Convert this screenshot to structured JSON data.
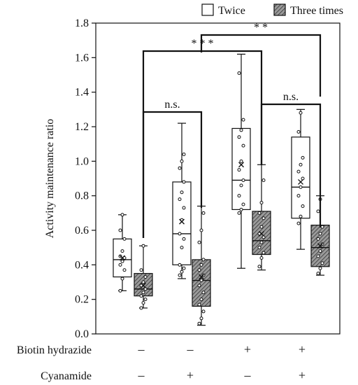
{
  "chart_data": {
    "type": "box",
    "ylabel": "Activity maintenance ratio",
    "ylim": [
      0.0,
      1.8
    ],
    "yticks": [
      0.0,
      0.2,
      0.4,
      0.6,
      0.8,
      1.0,
      1.2,
      1.4,
      1.6,
      1.8
    ],
    "legend": {
      "placement": "top-right",
      "entries": [
        {
          "name": "Twice",
          "style": "white"
        },
        {
          "name": "Three times",
          "style": "hatched"
        }
      ]
    },
    "conditions": [
      {
        "row_label": "Biotin hydrazide",
        "values": [
          "–",
          "–",
          "+",
          "+"
        ]
      },
      {
        "row_label": "Cyanamide",
        "values": [
          "–",
          "+",
          "–",
          "+"
        ]
      }
    ],
    "groups": [
      {
        "boxes": [
          {
            "series": "Twice",
            "min": 0.25,
            "q1": 0.33,
            "median": 0.43,
            "q3": 0.55,
            "max": 0.69,
            "mean": 0.44,
            "points": [
              0.25,
              0.32,
              0.37,
              0.4,
              0.42,
              0.44,
              0.45,
              0.48,
              0.55,
              0.6,
              0.69
            ]
          },
          {
            "series": "Three times",
            "min": 0.15,
            "q1": 0.22,
            "median": 0.26,
            "q3": 0.35,
            "max": 0.51,
            "mean": 0.28,
            "points": [
              0.15,
              0.18,
              0.2,
              0.22,
              0.24,
              0.26,
              0.28,
              0.3,
              0.33,
              0.37,
              0.51
            ]
          }
        ]
      },
      {
        "boxes": [
          {
            "series": "Twice",
            "min": 0.32,
            "q1": 0.4,
            "median": 0.58,
            "q3": 0.88,
            "max": 1.22,
            "mean": 0.65,
            "points": [
              0.34,
              0.36,
              0.38,
              0.4,
              0.5,
              0.55,
              0.58,
              0.66,
              0.73,
              0.78,
              0.82,
              0.88,
              0.96,
              1.0,
              1.04
            ]
          },
          {
            "series": "Three times",
            "min": 0.05,
            "q1": 0.16,
            "median": 0.31,
            "q3": 0.43,
            "max": 0.74,
            "mean": 0.33,
            "points": [
              0.06,
              0.09,
              0.13,
              0.17,
              0.2,
              0.24,
              0.28,
              0.31,
              0.34,
              0.37,
              0.4,
              0.43,
              0.53,
              0.6,
              0.7
            ]
          }
        ]
      },
      {
        "boxes": [
          {
            "series": "Twice",
            "min": 0.38,
            "q1": 0.72,
            "median": 0.89,
            "q3": 1.19,
            "max": 1.62,
            "mean": 0.98,
            "points": [
              0.7,
              0.72,
              0.75,
              0.8,
              0.86,
              0.89,
              0.95,
              1.0,
              1.09,
              1.14,
              1.18,
              1.24,
              1.51
            ]
          },
          {
            "series": "Three times",
            "min": 0.37,
            "q1": 0.46,
            "median": 0.54,
            "q3": 0.71,
            "max": 0.98,
            "mean": 0.58,
            "points": [
              0.39,
              0.44,
              0.47,
              0.5,
              0.53,
              0.56,
              0.58,
              0.62,
              0.67,
              0.7,
              0.76,
              0.89
            ]
          }
        ]
      },
      {
        "boxes": [
          {
            "series": "Twice",
            "min": 0.49,
            "q1": 0.67,
            "median": 0.85,
            "q3": 1.14,
            "max": 1.3,
            "mean": 0.88,
            "points": [
              0.64,
              0.68,
              0.74,
              0.8,
              0.85,
              0.9,
              0.94,
              0.98,
              1.02,
              1.17,
              1.28
            ]
          },
          {
            "series": "Three times",
            "min": 0.34,
            "q1": 0.39,
            "median": 0.5,
            "q3": 0.63,
            "max": 0.8,
            "mean": 0.51,
            "points": [
              0.35,
              0.38,
              0.41,
              0.45,
              0.48,
              0.52,
              0.55,
              0.58,
              0.62,
              0.71,
              0.78
            ]
          }
        ]
      }
    ],
    "annotations": [
      {
        "text": "n.s.",
        "from": "group1.Three times",
        "to": "group2.Three times"
      },
      {
        "text": "n.s.",
        "from": "group3.Three times",
        "to": "group4.Three times"
      },
      {
        "text": "* * *",
        "from": "group1.Three times",
        "to": "group3.Three times"
      },
      {
        "text": "* *",
        "from": "group2.Three times",
        "to": "group4.Three times"
      }
    ]
  }
}
